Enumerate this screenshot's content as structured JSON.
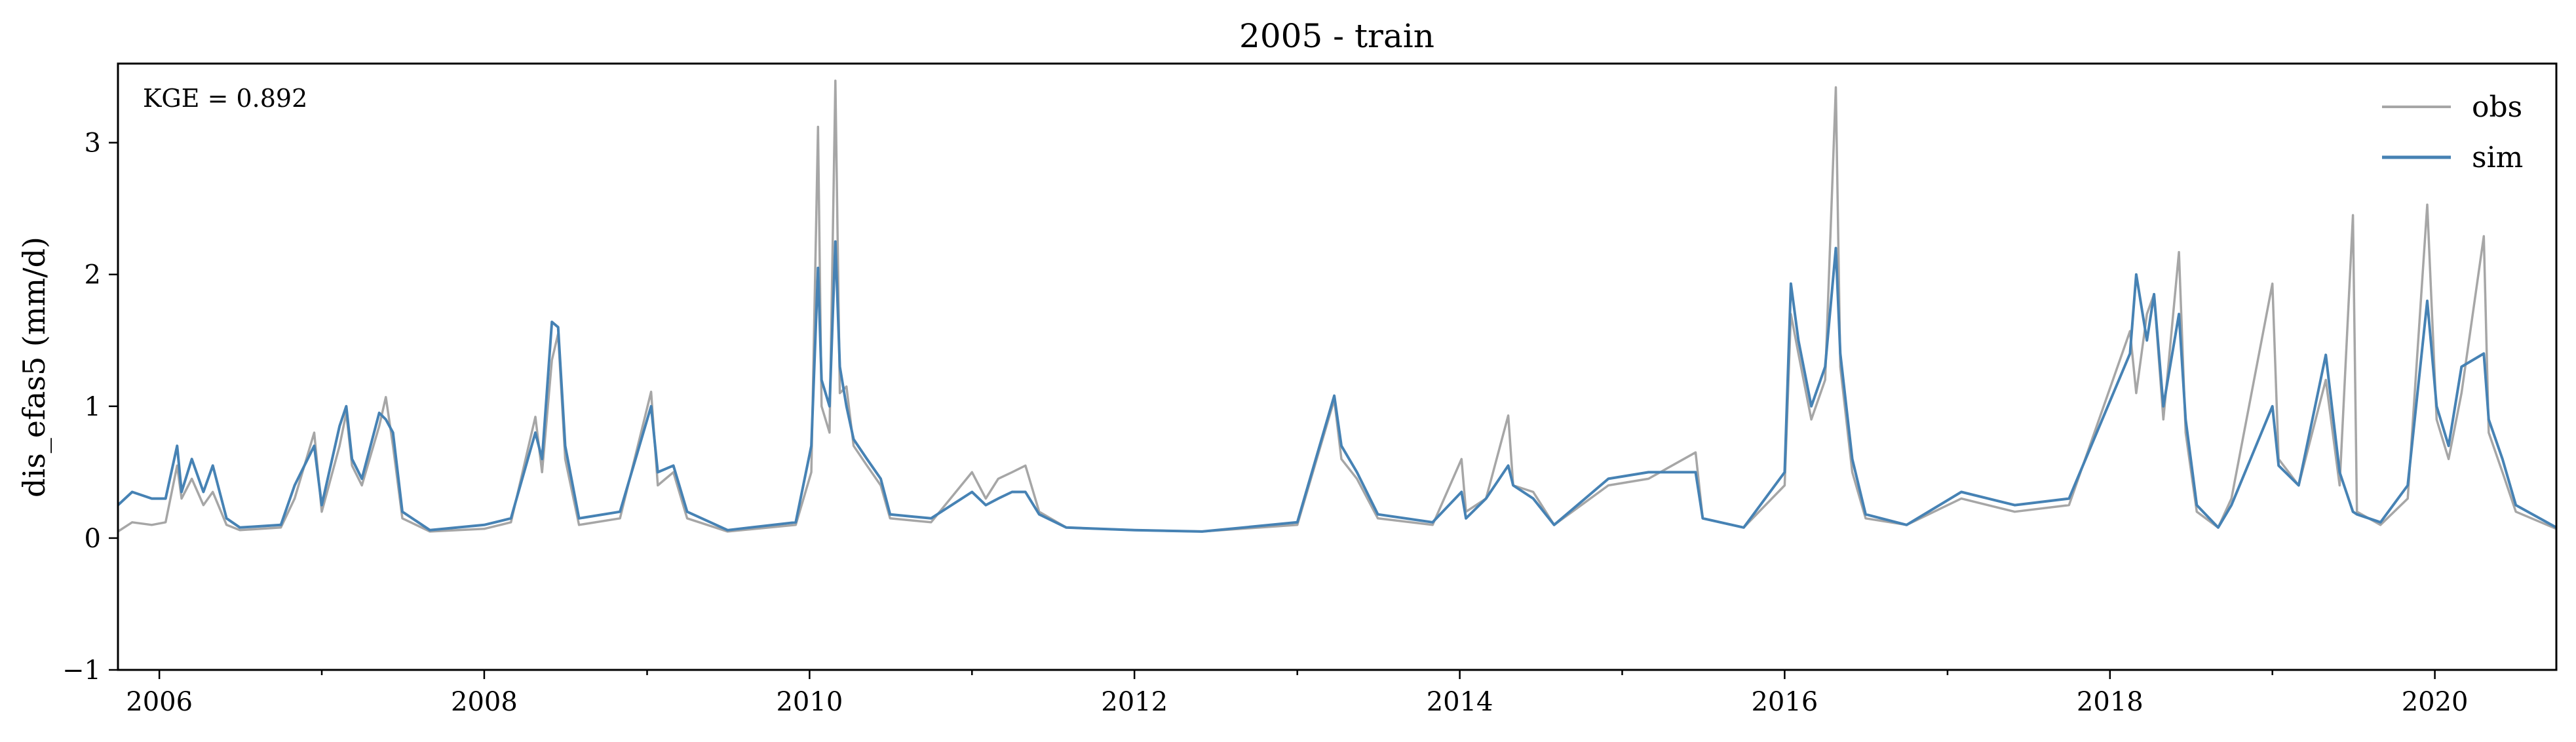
{
  "chart_data": {
    "type": "line",
    "title": "2005 - train",
    "xlabel": "",
    "ylabel": "dis_efas5 (mm/d)",
    "annotation": "KGE = 0.892",
    "xlim": [
      "2005-09-30",
      "2020-09-30"
    ],
    "ylim": [
      -1,
      3.6
    ],
    "x_ticks": [
      "2006",
      "2008",
      "2010",
      "2012",
      "2014",
      "2016",
      "2018",
      "2020"
    ],
    "y_ticks": [
      "−1",
      "0",
      "1",
      "2",
      "3"
    ],
    "legend_position": "top-right",
    "grid": false,
    "series": [
      {
        "name": "obs",
        "color": "#a6a6a6",
        "points": [
          [
            "2005-09-30",
            0.05
          ],
          [
            "2005-11-01",
            0.12
          ],
          [
            "2005-12-15",
            0.1
          ],
          [
            "2006-01-15",
            0.12
          ],
          [
            "2006-02-10",
            0.55
          ],
          [
            "2006-02-20",
            0.3
          ],
          [
            "2006-03-15",
            0.45
          ],
          [
            "2006-04-10",
            0.25
          ],
          [
            "2006-05-01",
            0.35
          ],
          [
            "2006-06-01",
            0.1
          ],
          [
            "2006-07-01",
            0.06
          ],
          [
            "2006-10-01",
            0.08
          ],
          [
            "2006-11-01",
            0.3
          ],
          [
            "2006-12-15",
            0.8
          ],
          [
            "2007-01-01",
            0.2
          ],
          [
            "2007-02-10",
            0.7
          ],
          [
            "2007-02-25",
            0.95
          ],
          [
            "2007-03-10",
            0.55
          ],
          [
            "2007-04-01",
            0.4
          ],
          [
            "2007-05-10",
            0.85
          ],
          [
            "2007-05-25",
            1.07
          ],
          [
            "2007-06-10",
            0.7
          ],
          [
            "2007-07-01",
            0.15
          ],
          [
            "2007-09-01",
            0.05
          ],
          [
            "2008-01-01",
            0.07
          ],
          [
            "2008-03-01",
            0.12
          ],
          [
            "2008-04-25",
            0.92
          ],
          [
            "2008-05-10",
            0.5
          ],
          [
            "2008-06-01",
            1.35
          ],
          [
            "2008-06-15",
            1.55
          ],
          [
            "2008-07-01",
            0.6
          ],
          [
            "2008-08-01",
            0.1
          ],
          [
            "2008-11-01",
            0.15
          ],
          [
            "2009-01-10",
            1.11
          ],
          [
            "2009-01-25",
            0.4
          ],
          [
            "2009-03-01",
            0.5
          ],
          [
            "2009-04-01",
            0.15
          ],
          [
            "2009-07-01",
            0.05
          ],
          [
            "2009-12-01",
            0.1
          ],
          [
            "2010-01-05",
            0.5
          ],
          [
            "2010-01-20",
            3.12
          ],
          [
            "2010-01-28",
            1.0
          ],
          [
            "2010-02-15",
            0.8
          ],
          [
            "2010-02-28",
            3.47
          ],
          [
            "2010-03-10",
            1.1
          ],
          [
            "2010-03-25",
            1.15
          ],
          [
            "2010-04-10",
            0.7
          ],
          [
            "2010-05-10",
            0.55
          ],
          [
            "2010-06-10",
            0.4
          ],
          [
            "2010-07-01",
            0.15
          ],
          [
            "2010-10-01",
            0.12
          ],
          [
            "2011-01-01",
            0.5
          ],
          [
            "2011-02-01",
            0.3
          ],
          [
            "2011-03-01",
            0.45
          ],
          [
            "2011-04-01",
            0.5
          ],
          [
            "2011-05-01",
            0.55
          ],
          [
            "2011-06-01",
            0.2
          ],
          [
            "2011-08-01",
            0.08
          ],
          [
            "2012-01-01",
            0.06
          ],
          [
            "2012-06-01",
            0.05
          ],
          [
            "2013-01-01",
            0.1
          ],
          [
            "2013-03-25",
            1.05
          ],
          [
            "2013-04-10",
            0.6
          ],
          [
            "2013-05-15",
            0.45
          ],
          [
            "2013-07-01",
            0.15
          ],
          [
            "2013-11-01",
            0.1
          ],
          [
            "2014-01-05",
            0.6
          ],
          [
            "2014-01-15",
            0.2
          ],
          [
            "2014-03-01",
            0.3
          ],
          [
            "2014-04-20",
            0.93
          ],
          [
            "2014-05-01",
            0.4
          ],
          [
            "2014-06-15",
            0.35
          ],
          [
            "2014-08-01",
            0.1
          ],
          [
            "2014-12-01",
            0.4
          ],
          [
            "2015-03-01",
            0.45
          ],
          [
            "2015-06-15",
            0.65
          ],
          [
            "2015-07-01",
            0.15
          ],
          [
            "2015-10-01",
            0.08
          ],
          [
            "2016-01-01",
            0.4
          ],
          [
            "2016-01-15",
            1.7
          ],
          [
            "2016-02-01",
            1.4
          ],
          [
            "2016-03-01",
            0.9
          ],
          [
            "2016-04-01",
            1.2
          ],
          [
            "2016-04-25",
            3.42
          ],
          [
            "2016-05-05",
            1.3
          ],
          [
            "2016-06-01",
            0.5
          ],
          [
            "2016-07-01",
            0.15
          ],
          [
            "2016-10-01",
            0.1
          ],
          [
            "2017-02-01",
            0.3
          ],
          [
            "2017-06-01",
            0.2
          ],
          [
            "2017-10-01",
            0.25
          ],
          [
            "2018-02-15",
            1.57
          ],
          [
            "2018-03-01",
            1.1
          ],
          [
            "2018-03-25",
            1.7
          ],
          [
            "2018-04-10",
            1.85
          ],
          [
            "2018-05-01",
            0.9
          ],
          [
            "2018-06-05",
            2.17
          ],
          [
            "2018-06-20",
            0.8
          ],
          [
            "2018-07-15",
            0.2
          ],
          [
            "2018-09-01",
            0.08
          ],
          [
            "2018-10-01",
            0.3
          ],
          [
            "2019-01-01",
            1.93
          ],
          [
            "2019-01-15",
            0.6
          ],
          [
            "2019-03-01",
            0.4
          ],
          [
            "2019-05-01",
            1.2
          ],
          [
            "2019-06-01",
            0.4
          ],
          [
            "2019-07-01",
            2.45
          ],
          [
            "2019-07-10",
            0.2
          ],
          [
            "2019-09-01",
            0.1
          ],
          [
            "2019-11-01",
            0.3
          ],
          [
            "2019-12-15",
            2.53
          ],
          [
            "2020-01-05",
            0.9
          ],
          [
            "2020-02-01",
            0.6
          ],
          [
            "2020-03-01",
            1.1
          ],
          [
            "2020-04-20",
            2.29
          ],
          [
            "2020-05-01",
            0.8
          ],
          [
            "2020-06-01",
            0.5
          ],
          [
            "2020-07-01",
            0.2
          ],
          [
            "2020-09-30",
            0.07
          ]
        ]
      },
      {
        "name": "sim",
        "color": "#4682b4",
        "points": [
          [
            "2005-09-30",
            0.25
          ],
          [
            "2005-11-01",
            0.35
          ],
          [
            "2005-12-15",
            0.3
          ],
          [
            "2006-01-15",
            0.3
          ],
          [
            "2006-02-10",
            0.7
          ],
          [
            "2006-02-20",
            0.35
          ],
          [
            "2006-03-15",
            0.6
          ],
          [
            "2006-04-10",
            0.35
          ],
          [
            "2006-05-01",
            0.55
          ],
          [
            "2006-06-01",
            0.15
          ],
          [
            "2006-07-01",
            0.08
          ],
          [
            "2006-10-01",
            0.1
          ],
          [
            "2006-11-01",
            0.4
          ],
          [
            "2006-12-15",
            0.7
          ],
          [
            "2007-01-01",
            0.25
          ],
          [
            "2007-02-10",
            0.85
          ],
          [
            "2007-02-25",
            1.0
          ],
          [
            "2007-03-10",
            0.6
          ],
          [
            "2007-04-01",
            0.45
          ],
          [
            "2007-05-10",
            0.95
          ],
          [
            "2007-05-25",
            0.9
          ],
          [
            "2007-06-10",
            0.8
          ],
          [
            "2007-07-01",
            0.2
          ],
          [
            "2007-09-01",
            0.06
          ],
          [
            "2008-01-01",
            0.1
          ],
          [
            "2008-03-01",
            0.15
          ],
          [
            "2008-04-25",
            0.8
          ],
          [
            "2008-05-10",
            0.6
          ],
          [
            "2008-06-01",
            1.64
          ],
          [
            "2008-06-15",
            1.6
          ],
          [
            "2008-07-01",
            0.7
          ],
          [
            "2008-08-01",
            0.15
          ],
          [
            "2008-11-01",
            0.2
          ],
          [
            "2009-01-10",
            1.0
          ],
          [
            "2009-01-25",
            0.5
          ],
          [
            "2009-03-01",
            0.55
          ],
          [
            "2009-04-01",
            0.2
          ],
          [
            "2009-07-01",
            0.06
          ],
          [
            "2009-12-01",
            0.12
          ],
          [
            "2010-01-05",
            0.7
          ],
          [
            "2010-01-20",
            2.05
          ],
          [
            "2010-01-28",
            1.2
          ],
          [
            "2010-02-15",
            1.0
          ],
          [
            "2010-02-28",
            2.25
          ],
          [
            "2010-03-10",
            1.3
          ],
          [
            "2010-03-25",
            1.0
          ],
          [
            "2010-04-10",
            0.75
          ],
          [
            "2010-05-10",
            0.6
          ],
          [
            "2010-06-10",
            0.45
          ],
          [
            "2010-07-01",
            0.18
          ],
          [
            "2010-10-01",
            0.15
          ],
          [
            "2011-01-01",
            0.35
          ],
          [
            "2011-02-01",
            0.25
          ],
          [
            "2011-03-01",
            0.3
          ],
          [
            "2011-04-01",
            0.35
          ],
          [
            "2011-05-01",
            0.35
          ],
          [
            "2011-06-01",
            0.18
          ],
          [
            "2011-08-01",
            0.08
          ],
          [
            "2012-01-01",
            0.06
          ],
          [
            "2012-06-01",
            0.05
          ],
          [
            "2013-01-01",
            0.12
          ],
          [
            "2013-03-25",
            1.08
          ],
          [
            "2013-04-10",
            0.7
          ],
          [
            "2013-05-15",
            0.5
          ],
          [
            "2013-07-01",
            0.18
          ],
          [
            "2013-11-01",
            0.12
          ],
          [
            "2014-01-05",
            0.35
          ],
          [
            "2014-01-15",
            0.15
          ],
          [
            "2014-03-01",
            0.3
          ],
          [
            "2014-04-20",
            0.55
          ],
          [
            "2014-05-01",
            0.4
          ],
          [
            "2014-06-15",
            0.3
          ],
          [
            "2014-08-01",
            0.1
          ],
          [
            "2014-12-01",
            0.45
          ],
          [
            "2015-03-01",
            0.5
          ],
          [
            "2015-06-15",
            0.5
          ],
          [
            "2015-07-01",
            0.15
          ],
          [
            "2015-10-01",
            0.08
          ],
          [
            "2016-01-01",
            0.5
          ],
          [
            "2016-01-15",
            1.93
          ],
          [
            "2016-02-01",
            1.5
          ],
          [
            "2016-03-01",
            1.0
          ],
          [
            "2016-04-01",
            1.3
          ],
          [
            "2016-04-25",
            2.2
          ],
          [
            "2016-05-05",
            1.4
          ],
          [
            "2016-06-01",
            0.6
          ],
          [
            "2016-07-01",
            0.18
          ],
          [
            "2016-10-01",
            0.1
          ],
          [
            "2017-02-01",
            0.35
          ],
          [
            "2017-06-01",
            0.25
          ],
          [
            "2017-10-01",
            0.3
          ],
          [
            "2018-02-15",
            1.4
          ],
          [
            "2018-03-01",
            2.0
          ],
          [
            "2018-03-25",
            1.5
          ],
          [
            "2018-04-10",
            1.85
          ],
          [
            "2018-05-01",
            1.0
          ],
          [
            "2018-06-05",
            1.7
          ],
          [
            "2018-06-20",
            0.9
          ],
          [
            "2018-07-15",
            0.25
          ],
          [
            "2018-09-01",
            0.08
          ],
          [
            "2018-10-01",
            0.25
          ],
          [
            "2019-01-01",
            1.0
          ],
          [
            "2019-01-15",
            0.55
          ],
          [
            "2019-03-01",
            0.4
          ],
          [
            "2019-05-01",
            1.39
          ],
          [
            "2019-06-01",
            0.5
          ],
          [
            "2019-07-01",
            0.2
          ],
          [
            "2019-07-10",
            0.18
          ],
          [
            "2019-09-01",
            0.12
          ],
          [
            "2019-11-01",
            0.4
          ],
          [
            "2019-12-15",
            1.8
          ],
          [
            "2020-01-05",
            1.0
          ],
          [
            "2020-02-01",
            0.7
          ],
          [
            "2020-03-01",
            1.3
          ],
          [
            "2020-04-20",
            1.4
          ],
          [
            "2020-05-01",
            0.9
          ],
          [
            "2020-06-01",
            0.6
          ],
          [
            "2020-07-01",
            0.25
          ],
          [
            "2020-09-30",
            0.08
          ]
        ]
      }
    ]
  }
}
